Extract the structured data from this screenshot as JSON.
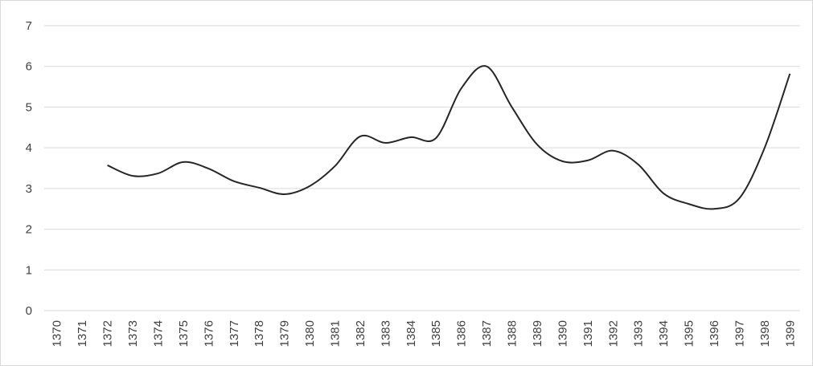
{
  "chart_data": {
    "type": "line",
    "categories": [
      "1370",
      "1371",
      "1372",
      "1373",
      "1374",
      "1375",
      "1376",
      "1377",
      "1378",
      "1379",
      "1380",
      "1381",
      "1382",
      "1383",
      "1384",
      "1385",
      "1386",
      "1387",
      "1388",
      "1389",
      "1390",
      "1391",
      "1392",
      "1393",
      "1394",
      "1395",
      "1396",
      "1397",
      "1398",
      "1399"
    ],
    "values": [
      null,
      null,
      3.57,
      3.31,
      3.37,
      3.65,
      3.49,
      3.18,
      3.02,
      2.86,
      3.06,
      3.55,
      4.28,
      4.12,
      4.26,
      4.24,
      5.46,
      6.0,
      5.0,
      4.08,
      3.67,
      3.69,
      3.93,
      3.59,
      2.88,
      2.62,
      2.5,
      2.76,
      4.0,
      5.82
    ],
    "color": "#262626",
    "ylim": [
      0,
      7
    ],
    "yticks": [
      0,
      1,
      2,
      3,
      4,
      5,
      6,
      7
    ],
    "grid": true,
    "smooth": true
  }
}
